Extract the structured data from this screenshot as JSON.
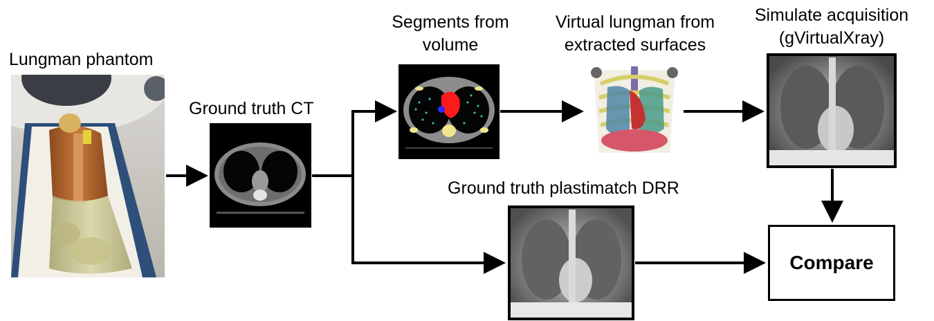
{
  "labels": {
    "phantom": "Lungman phantom",
    "ct": "Ground truth CT",
    "segments_line1": "Segments from",
    "segments_line2": "volume",
    "virtual_line1": "Virtual lungman from",
    "virtual_line2": "extracted surfaces",
    "simulate_line1": "Simulate acquisition",
    "simulate_line2": "(gVirtualXray)",
    "drr": "Ground truth plastimatch DRR",
    "compare": "Compare"
  },
  "colors": {
    "segment_heart": "#ff1a1a",
    "segment_bone": "#f0e68c",
    "segment_vessels": "#33cccc",
    "phantom_body": "#b8692a"
  }
}
